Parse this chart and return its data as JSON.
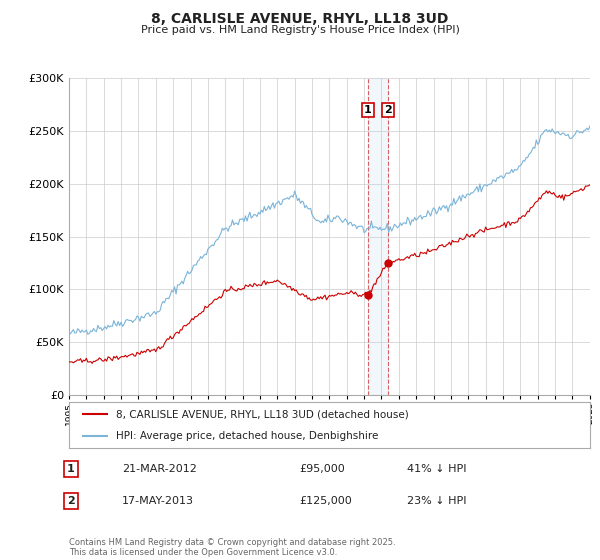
{
  "title": "8, CARLISLE AVENUE, RHYL, LL18 3UD",
  "subtitle": "Price paid vs. HM Land Registry's House Price Index (HPI)",
  "background_color": "#ffffff",
  "plot_bg_color": "#ffffff",
  "grid_color": "#cccccc",
  "hpi_color": "#7ab4d8",
  "property_color": "#cc0000",
  "sale1_date": 2012.22,
  "sale2_date": 2013.38,
  "sale1_price": 95000,
  "sale2_price": 125000,
  "sale1_label": "1",
  "sale2_label": "2",
  "sale1_text": "21-MAR-2012",
  "sale1_amount": "£95,000",
  "sale1_hpi": "41% ↓ HPI",
  "sale2_text": "17-MAY-2013",
  "sale2_amount": "£125,000",
  "sale2_hpi": "23% ↓ HPI",
  "legend_property": "8, CARLISLE AVENUE, RHYL, LL18 3UD (detached house)",
  "legend_hpi": "HPI: Average price, detached house, Denbighshire",
  "footer": "Contains HM Land Registry data © Crown copyright and database right 2025.\nThis data is licensed under the Open Government Licence v3.0.",
  "ylim_max": 300000,
  "xmin": 1995,
  "xmax": 2025
}
